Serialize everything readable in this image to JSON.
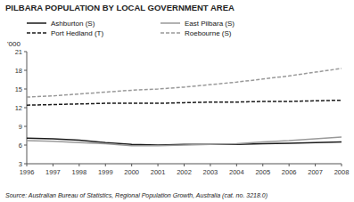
{
  "chart_data": {
    "type": "line",
    "title": "PILBARA POPULATION BY LOCAL GOVERNMENT AREA",
    "y_label": "'000",
    "source": "Source: Australian Bureau of Statistics, Regional Population Growth, Australia (cat. no. 3218.0)",
    "x": [
      1996,
      1997,
      1998,
      1999,
      2000,
      2001,
      2002,
      2003,
      2004,
      2005,
      2006,
      2007,
      2008
    ],
    "series": [
      {
        "name": "Ashburton (S)",
        "color": "#1a1a1a",
        "line_style": "solid",
        "values": [
          7.1,
          7.0,
          6.8,
          6.4,
          6.1,
          6.0,
          6.1,
          6.1,
          6.1,
          6.2,
          6.3,
          6.4,
          6.5
        ]
      },
      {
        "name": "East Pilbara (S)",
        "color": "#999999",
        "line_style": "solid",
        "values": [
          6.7,
          6.6,
          6.4,
          6.2,
          5.9,
          5.9,
          6.0,
          6.1,
          6.2,
          6.5,
          6.7,
          7.0,
          7.3
        ]
      },
      {
        "name": "Port Hedland (T)",
        "color": "#1a1a1a",
        "line_style": "dashed",
        "values": [
          12.4,
          12.5,
          12.6,
          12.7,
          12.7,
          12.7,
          12.8,
          12.9,
          12.9,
          13.0,
          13.0,
          13.1,
          13.2
        ]
      },
      {
        "name": "Roebourne (S)",
        "color": "#999999",
        "line_style": "dashed",
        "values": [
          13.7,
          13.9,
          14.2,
          14.5,
          14.8,
          15.0,
          15.3,
          15.7,
          16.1,
          16.6,
          17.1,
          17.7,
          18.3
        ]
      }
    ],
    "xlim": [
      1996,
      2008
    ],
    "xticks": [
      1996,
      1997,
      1998,
      1999,
      2000,
      2001,
      2002,
      2003,
      2004,
      2005,
      2006,
      2007,
      2008
    ],
    "ylim": [
      3,
      21
    ],
    "yticks": [
      3,
      6,
      9,
      12,
      15,
      18,
      21
    ],
    "grid": false,
    "legend": "top"
  }
}
